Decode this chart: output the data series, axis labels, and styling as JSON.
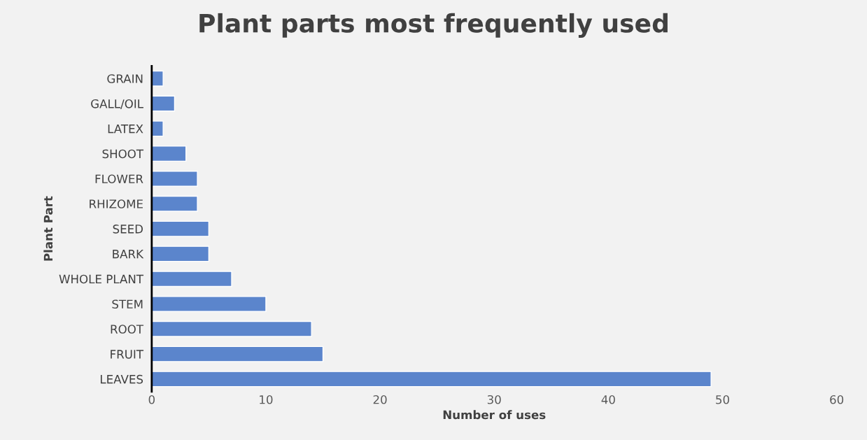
{
  "chart_data": {
    "type": "bar",
    "orientation": "horizontal",
    "title": "Plant parts most frequently used",
    "xlabel": "Number of uses",
    "ylabel": "Plant Part",
    "categories": [
      "GRAIN",
      "GALL/OIL",
      "LATEX",
      "SHOOT",
      "FLOWER",
      "RHIZOME",
      "SEED",
      "BARK",
      "WHOLE PLANT",
      "STEM",
      "ROOT",
      "FRUIT",
      "LEAVES"
    ],
    "values": [
      1,
      2,
      1,
      3,
      4,
      4,
      5,
      5,
      7,
      10,
      14,
      15,
      49
    ],
    "color": "#5b85cc",
    "xlim": [
      0,
      60
    ],
    "xticks": [
      0,
      10,
      20,
      30,
      40,
      50,
      60
    ],
    "grid": false,
    "legend": false
  }
}
